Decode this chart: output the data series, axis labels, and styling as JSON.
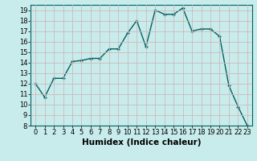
{
  "x": [
    0,
    1,
    2,
    3,
    4,
    5,
    6,
    7,
    8,
    9,
    10,
    11,
    12,
    13,
    14,
    15,
    16,
    17,
    18,
    19,
    20,
    21,
    22,
    23
  ],
  "y": [
    12,
    10.7,
    12.5,
    12.5,
    14.1,
    14.2,
    14.4,
    14.4,
    15.3,
    15.3,
    16.8,
    18.0,
    15.5,
    19.0,
    18.6,
    18.6,
    19.2,
    17.0,
    17.2,
    17.2,
    16.5,
    11.8,
    9.8,
    8.0
  ],
  "line_color": "#006060",
  "marker": "+",
  "marker_size": 3.5,
  "marker_lw": 1.0,
  "bg_color": "#c8ecec",
  "grid_color": "#d0b8b8",
  "xlabel": "Humidex (Indice chaleur)",
  "xlim": [
    -0.5,
    23.5
  ],
  "ylim": [
    8,
    19.5
  ],
  "yticks": [
    8,
    9,
    10,
    11,
    12,
    13,
    14,
    15,
    16,
    17,
    18,
    19
  ],
  "xticks": [
    0,
    1,
    2,
    3,
    4,
    5,
    6,
    7,
    8,
    9,
    10,
    11,
    12,
    13,
    14,
    15,
    16,
    17,
    18,
    19,
    20,
    21,
    22,
    23
  ],
  "tick_label_fontsize": 6,
  "xlabel_fontsize": 7.5,
  "line_width": 1.0
}
